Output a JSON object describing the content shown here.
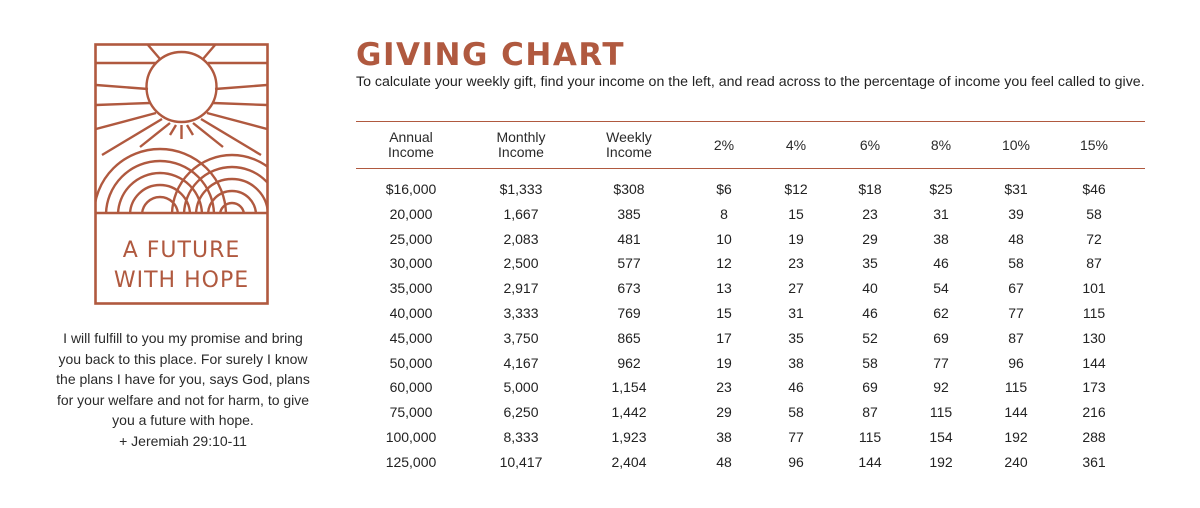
{
  "logo": {
    "line1": "A FUTURE",
    "line2": "WITH HOPE",
    "color": "#b0593f"
  },
  "verse": {
    "text": "I will fulfill to you my promise and bring you back to this place. For surely I know the plans I have for you, says God, plans for your welfare and not for harm, to give you a future with hope.",
    "citation": "+ Jeremiah 29:10-11"
  },
  "header": {
    "title": "GIVING CHART",
    "subtitle": "To calculate your weekly gift, find your income on the left, and read across to the percentage of income you feel called to give."
  },
  "colors": {
    "accent": "#b0593f",
    "text": "#222222"
  },
  "table": {
    "columns": [
      {
        "line1": "Annual",
        "line2": "Income"
      },
      {
        "line1": "Monthly",
        "line2": "Income"
      },
      {
        "line1": "Weekly",
        "line2": "Income"
      },
      {
        "line1": "2%",
        "line2": ""
      },
      {
        "line1": "4%",
        "line2": ""
      },
      {
        "line1": "6%",
        "line2": ""
      },
      {
        "line1": "8%",
        "line2": ""
      },
      {
        "line1": "10%",
        "line2": ""
      },
      {
        "line1": "15%",
        "line2": ""
      }
    ],
    "rows": [
      [
        "$16,000",
        "$1,333",
        "$308",
        "$6",
        "$12",
        "$18",
        "$25",
        "$31",
        "$46"
      ],
      [
        "20,000",
        "1,667",
        "385",
        "8",
        "15",
        "23",
        "31",
        "39",
        "58"
      ],
      [
        "25,000",
        "2,083",
        "481",
        "10",
        "19",
        "29",
        "38",
        "48",
        "72"
      ],
      [
        "30,000",
        "2,500",
        "577",
        "12",
        "23",
        "35",
        "46",
        "58",
        "87"
      ],
      [
        "35,000",
        "2,917",
        "673",
        "13",
        "27",
        "40",
        "54",
        "67",
        "101"
      ],
      [
        "40,000",
        "3,333",
        "769",
        "15",
        "31",
        "46",
        "62",
        "77",
        "115"
      ],
      [
        "45,000",
        "3,750",
        "865",
        "17",
        "35",
        "52",
        "69",
        "87",
        "130"
      ],
      [
        "50,000",
        "4,167",
        "962",
        "19",
        "38",
        "58",
        "77",
        "96",
        "144"
      ],
      [
        "60,000",
        "5,000",
        "1,154",
        "23",
        "46",
        "69",
        "92",
        "115",
        "173"
      ],
      [
        "75,000",
        "6,250",
        "1,442",
        "29",
        "58",
        "87",
        "115",
        "144",
        "216"
      ],
      [
        "100,000",
        "8,333",
        "1,923",
        "38",
        "77",
        "115",
        "154",
        "192",
        "288"
      ],
      [
        "125,000",
        "10,417",
        "2,404",
        "48",
        "96",
        "144",
        "192",
        "240",
        "361"
      ]
    ]
  }
}
